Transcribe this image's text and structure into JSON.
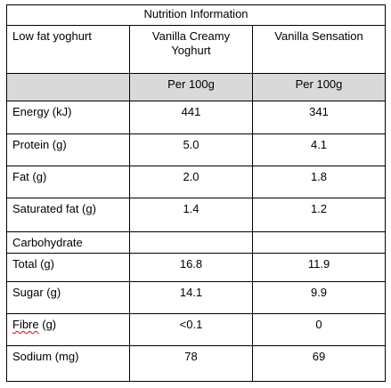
{
  "table": {
    "title": "Nutrition Information",
    "header": [
      "Low fat yoghurt",
      "Vanilla Creamy Yoghurt",
      "Vanilla Sensation"
    ],
    "units": [
      "Per 100g",
      "Per 100g"
    ],
    "rows": [
      [
        "Energy  (kJ)",
        "441",
        "341"
      ],
      [
        "Protein (g)",
        "5.0",
        "4.1"
      ],
      [
        "Fat (g)",
        "2.0",
        "1.8"
      ],
      [
        "Saturated fat (g)",
        "1.4",
        "1.2"
      ],
      [
        "Carbohydrate"
      ],
      [
        "Total (g)",
        "16.8",
        "11.9"
      ],
      [
        "Sugar (g)",
        "14.1",
        "9.9"
      ],
      [
        "Fibre (g)",
        "<0.1",
        "0"
      ],
      [
        "Sodium (mg)",
        "78",
        "69"
      ]
    ]
  }
}
